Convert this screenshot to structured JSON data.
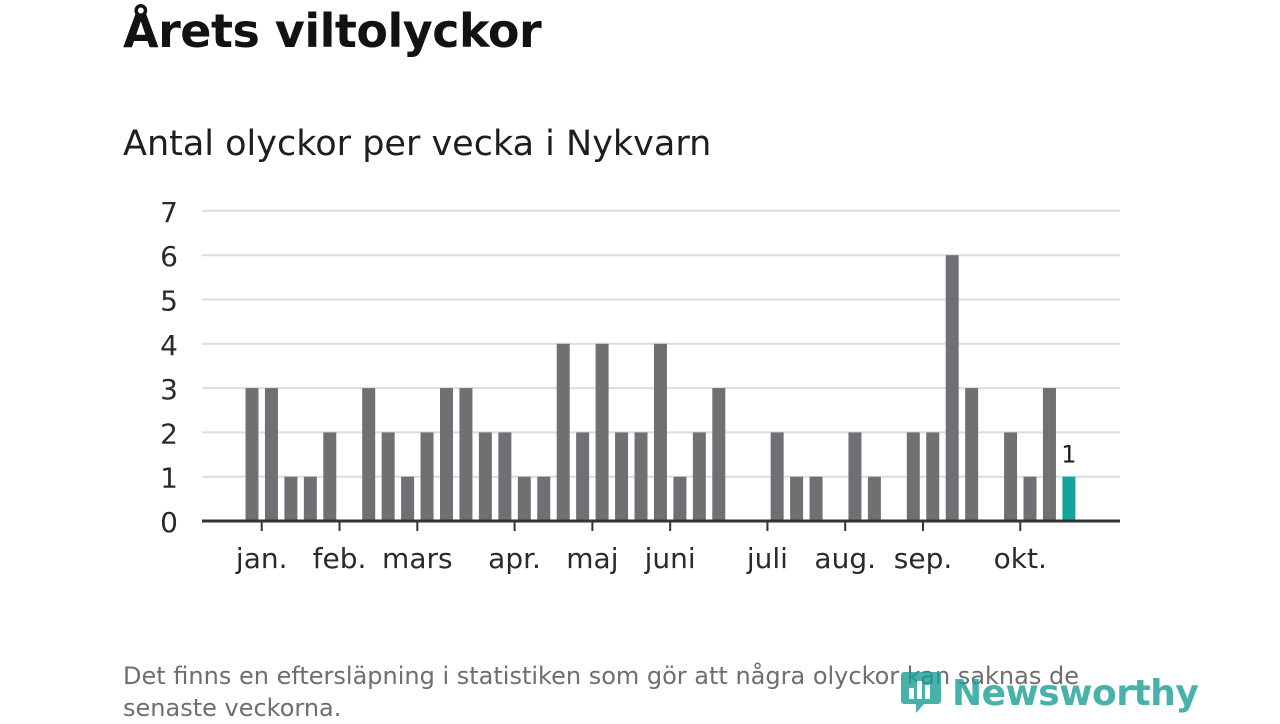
{
  "header": {
    "title": "Årets viltolyckor",
    "subtitle": "Antal olyckor per vecka i Nykvarn"
  },
  "chart_data": {
    "type": "bar",
    "title": "Antal olyckor per vecka i Nykvarn",
    "xlabel": "",
    "ylabel": "",
    "ylim": [
      0,
      7
    ],
    "yticks": [
      "0",
      "1",
      "2",
      "3",
      "4",
      "5",
      "6",
      "7"
    ],
    "grid": true,
    "weeks": [
      1,
      2,
      3,
      4,
      5,
      6,
      7,
      8,
      9,
      10,
      11,
      12,
      13,
      14,
      15,
      16,
      17,
      18,
      19,
      20,
      21,
      22,
      23,
      24,
      25,
      26,
      27,
      28,
      29,
      30,
      31,
      32,
      33,
      34,
      35,
      36,
      37,
      38,
      39,
      40,
      41,
      42,
      43
    ],
    "values": [
      3,
      3,
      1,
      1,
      2,
      0,
      3,
      2,
      1,
      2,
      3,
      3,
      2,
      2,
      1,
      1,
      4,
      2,
      4,
      2,
      2,
      4,
      1,
      2,
      3,
      0,
      0,
      2,
      1,
      1,
      0,
      2,
      1,
      0,
      2,
      2,
      6,
      3,
      0,
      2,
      1,
      3,
      1
    ],
    "highlight_last": true,
    "last_label": "1",
    "month_labels": [
      {
        "label": "jan.",
        "week": 1.5
      },
      {
        "label": "feb.",
        "week": 5.5
      },
      {
        "label": "mars",
        "week": 9.5
      },
      {
        "label": "apr.",
        "week": 14.5
      },
      {
        "label": "maj",
        "week": 18.5
      },
      {
        "label": "juni",
        "week": 22.5
      },
      {
        "label": "juli",
        "week": 27.5
      },
      {
        "label": "aug.",
        "week": 31.5
      },
      {
        "label": "sep.",
        "week": 35.5
      },
      {
        "label": "okt.",
        "week": 40.5
      }
    ],
    "colors": {
      "bar": "#707074",
      "highlight": "#14a39a",
      "grid": "#dcdcdc",
      "axis": "#333333"
    }
  },
  "footer": {
    "note": "Det finns en eftersläpning i statistiken som gör att några olyckor kan saknas de senaste veckorna.",
    "brand": "Newsworthy",
    "brand_icon": "newsworthy-bar-icon"
  }
}
